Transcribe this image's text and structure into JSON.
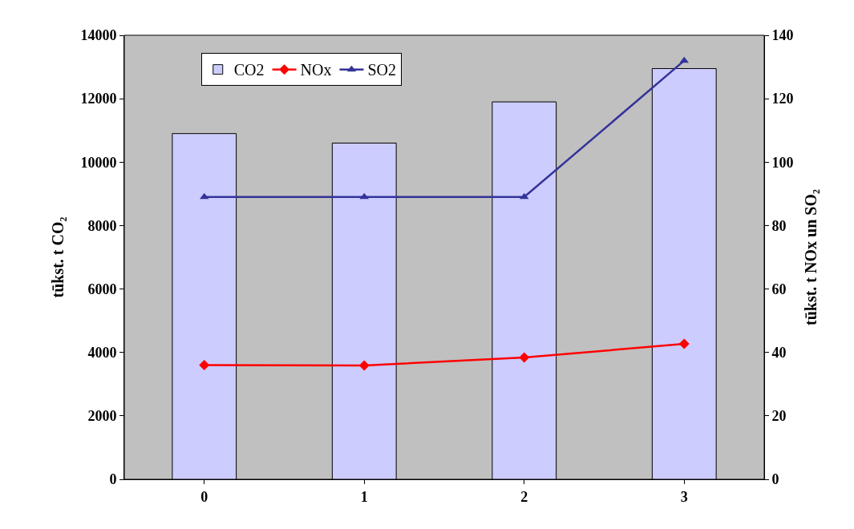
{
  "chart_data": {
    "type": "bar",
    "categories": [
      "0",
      "1",
      "2",
      "3"
    ],
    "ylabel": "tūkst. t CO₂",
    "y2label": "tūkst. t NOx un SO₂",
    "ylim": [
      0,
      14000
    ],
    "yticks": [
      0,
      2000,
      4000,
      6000,
      8000,
      10000,
      12000,
      14000
    ],
    "y2lim": [
      0,
      140
    ],
    "y2ticks": [
      0,
      20,
      40,
      60,
      80,
      100,
      120,
      140
    ],
    "grid": false,
    "legend": "top left",
    "series": [
      {
        "name": "CO2",
        "color": "#ccccff",
        "values": [
          10900,
          10600,
          11900,
          12950
        ]
      },
      {
        "name": "NOx",
        "type": "line",
        "axis": "y2",
        "color": "#ff0000",
        "marker": "diamond",
        "values": [
          36,
          35.9,
          38.4,
          42.7
        ]
      },
      {
        "name": "SO2",
        "type": "line",
        "axis": "y2",
        "color": "#333399",
        "marker": "triangle",
        "values": [
          89,
          89,
          89,
          132
        ]
      }
    ]
  }
}
